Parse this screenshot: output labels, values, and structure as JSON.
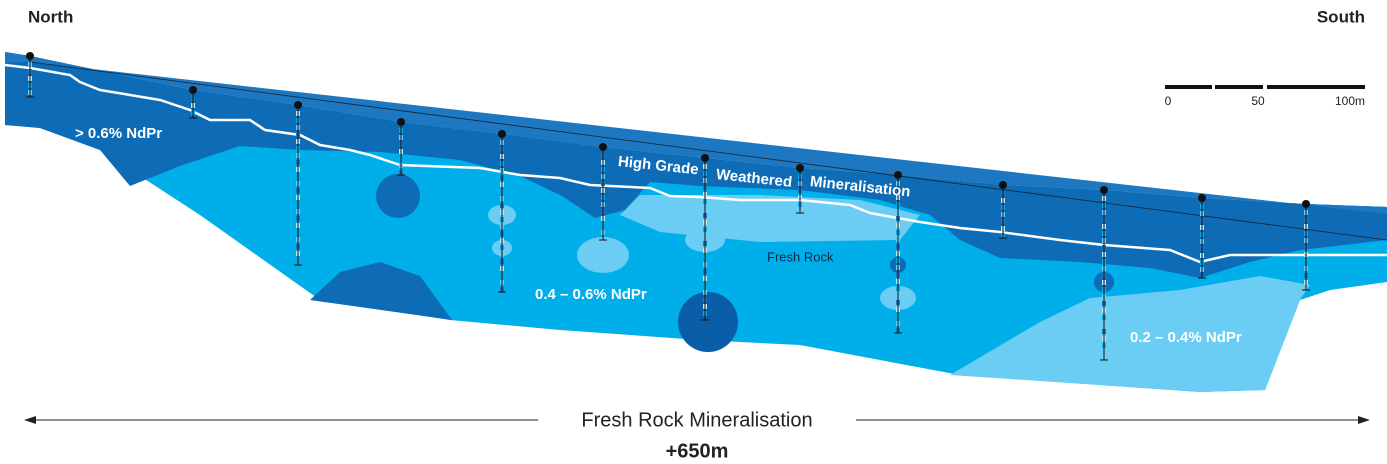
{
  "header": {
    "left": "North",
    "right": "South"
  },
  "scale_bar": {
    "labels": [
      "0",
      "50",
      "100m"
    ]
  },
  "zones": {
    "high_grade_top": "> 0.6% NdPr",
    "weathered": [
      "High Grade",
      "Weathered",
      "Mineralisation"
    ],
    "fresh_rock": "Fresh Rock",
    "mid_grade": "0.4 – 0.6% NdPr",
    "low_grade": "0.2 – 0.4% NdPr"
  },
  "footer": {
    "span_label": "Fresh Rock Mineralisation",
    "length": "+650m"
  }
}
